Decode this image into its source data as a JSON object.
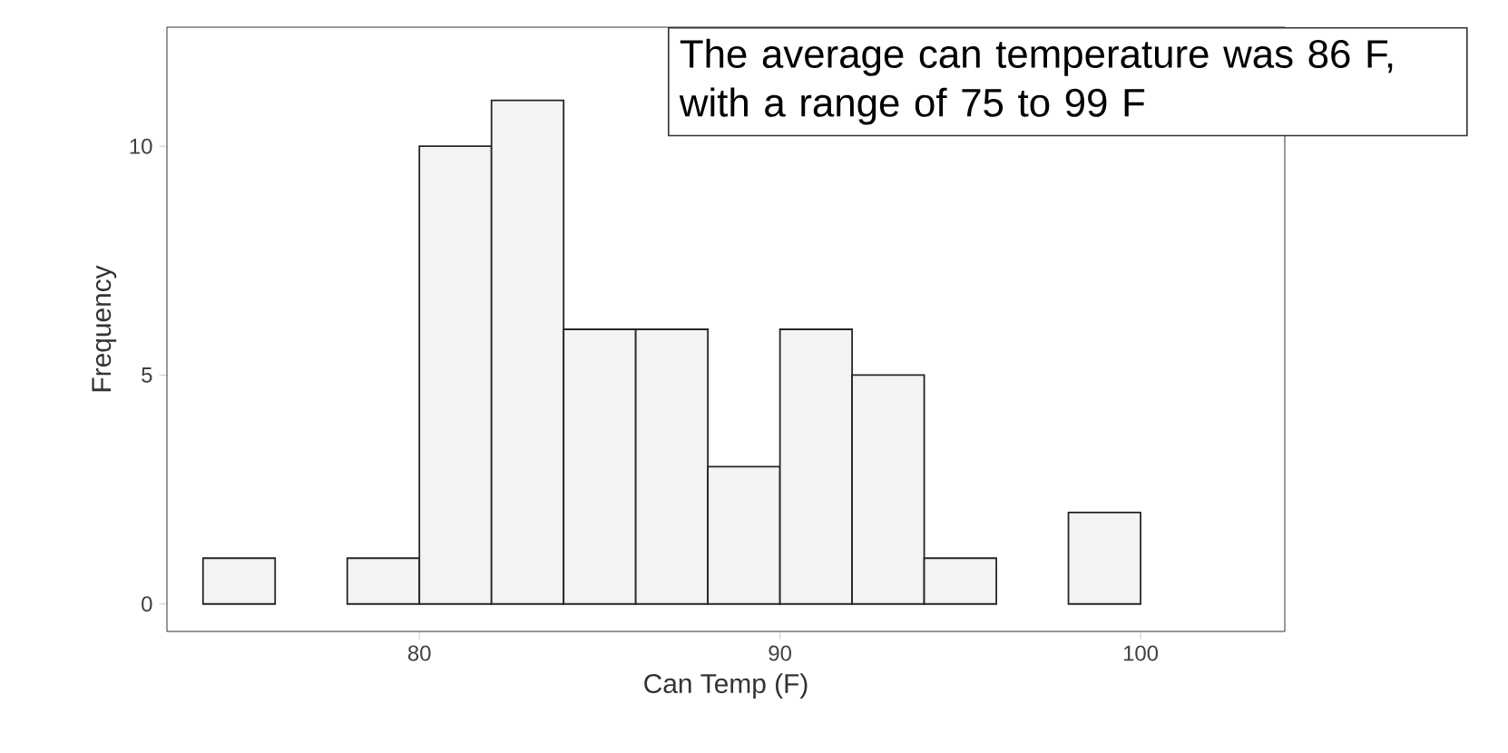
{
  "chart_data": {
    "type": "histogram",
    "xlabel": "Can Temp (F)",
    "ylabel": "Frequency",
    "annotations": [
      "The average can temperature was 86 F, with a range of 75 to 99 F"
    ],
    "bins": [
      74,
      76,
      78,
      80,
      82,
      84,
      86,
      88,
      90,
      92,
      94,
      96,
      98,
      100
    ],
    "values": [
      1,
      0,
      1,
      10,
      11,
      6,
      6,
      3,
      6,
      5,
      1,
      0,
      2
    ],
    "color": "#f3f3f3",
    "xlim": [
      73,
      104
    ],
    "ylim": [
      -0.6,
      12.6
    ],
    "xticks": [
      80,
      90,
      100
    ],
    "yticks": [
      0,
      5,
      10
    ],
    "grid": false
  }
}
